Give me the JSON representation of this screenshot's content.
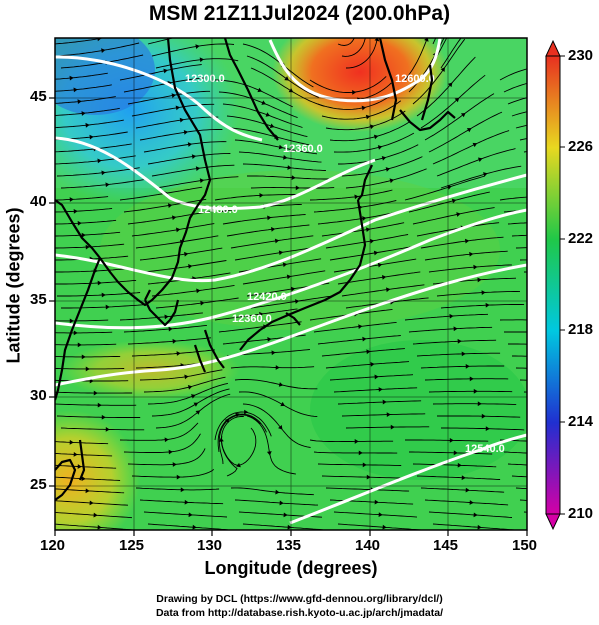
{
  "title": "MSM 21Z11Jul2024 (200.0hPa)",
  "x_axis": {
    "label": "Longitude (degrees)",
    "range": [
      120,
      150
    ],
    "ticks": [
      "120",
      "125",
      "130",
      "135",
      "140",
      "145",
      "150"
    ]
  },
  "y_axis": {
    "label": "Latitude  (degrees)",
    "range": [
      22.5,
      47.5
    ],
    "ticks": [
      "25",
      "30",
      "35",
      "40",
      "45"
    ]
  },
  "colorbar": {
    "ticks": [
      "210",
      "214",
      "218",
      "222",
      "226",
      "230"
    ],
    "range": [
      210,
      230
    ],
    "colors": [
      "#d400a6",
      "#2030d0",
      "#00c8e0",
      "#20c848",
      "#e8d820",
      "#e83020"
    ]
  },
  "contour_labels": [
    "12300.0",
    "12360.0",
    "12480.0",
    "12420.0",
    "12360.0",
    "12540.0",
    "12600.0"
  ],
  "credits": [
    "Drawing by DCL (https://www.gfd-dennou.org/library/dcl/)",
    "Data from http://database.rish.kyoto-u.ac.jp/arch/jmadata/"
  ]
}
